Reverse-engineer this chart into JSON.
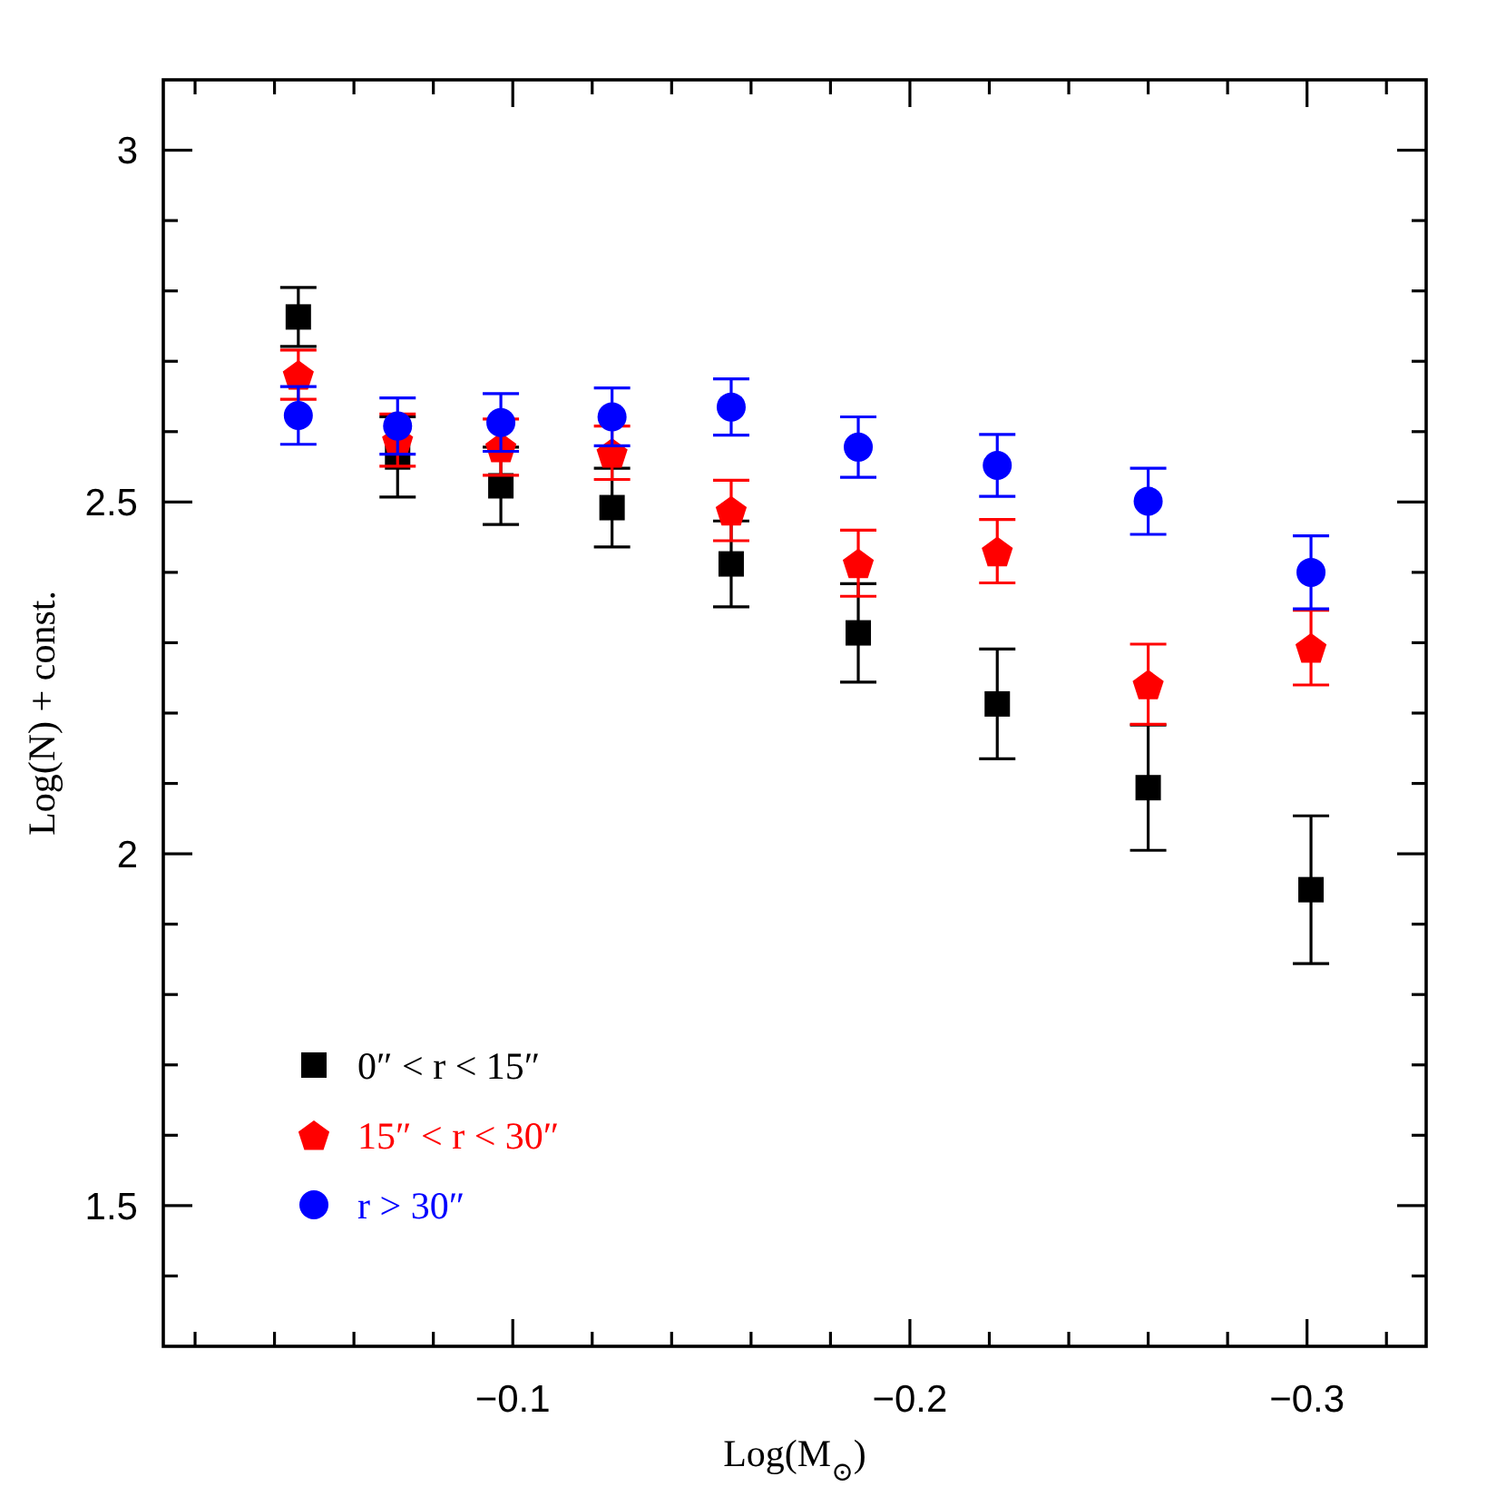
{
  "chart_data": {
    "type": "scatter",
    "xlabel": "Log(M$_{⊙}$)",
    "ylabel": "Log(N) + const.",
    "x": [
      -0.046,
      -0.071,
      -0.097,
      -0.125,
      -0.155,
      -0.187,
      -0.222,
      -0.26,
      -0.301
    ],
    "series": [
      {
        "name": "0″ < r < 15″",
        "color": "#000000",
        "marker": "square",
        "values": [
          2.763,
          2.564,
          2.523,
          2.492,
          2.412,
          2.314,
          2.213,
          2.094,
          1.949
        ],
        "errors": [
          0.042,
          0.057,
          0.055,
          0.056,
          0.061,
          0.07,
          0.078,
          0.089,
          0.105
        ]
      },
      {
        "name": "15″ < r < 30″",
        "color": "#ff0000",
        "values": [
          2.681,
          2.588,
          2.578,
          2.57,
          2.488,
          2.413,
          2.43,
          2.241,
          2.293
        ],
        "errors": [
          0.035,
          0.037,
          0.04,
          0.038,
          0.043,
          0.047,
          0.045,
          0.057,
          0.053
        ]
      },
      {
        "name": "r > 30″",
        "color": "#0000ff",
        "marker": "circle",
        "values": [
          2.623,
          2.608,
          2.613,
          2.621,
          2.635,
          2.578,
          2.552,
          2.501,
          2.4
        ],
        "errors": [
          0.041,
          0.04,
          0.041,
          0.041,
          0.04,
          0.043,
          0.044,
          0.047,
          0.052
        ]
      }
    ],
    "xlim": [
      -0.012,
      -0.33
    ],
    "xticks": [
      {
        "value": -0.02,
        "label": null
      },
      {
        "value": -0.04,
        "label": null
      },
      {
        "value": -0.06,
        "label": null
      },
      {
        "value": -0.08,
        "label": null
      },
      -0.1,
      {
        "value": -0.12,
        "label": null
      },
      {
        "value": -0.14,
        "label": null
      },
      {
        "value": -0.16,
        "label": null
      },
      {
        "value": -0.18,
        "label": null
      },
      -0.2,
      {
        "value": -0.22,
        "label": null
      },
      {
        "value": -0.24,
        "label": null
      },
      {
        "value": -0.26,
        "label": null
      },
      {
        "value": -0.28,
        "label": null
      },
      -0.3,
      {
        "value": -0.32,
        "label": null
      }
    ],
    "ylim": [
      1.3,
      3.1
    ],
    "yticks": [
      {
        "value": 1.4,
        "label": null
      },
      1.5,
      {
        "value": 1.6,
        "label": null
      },
      {
        "value": 1.7,
        "label": null
      },
      {
        "value": 1.8,
        "label": null
      },
      {
        "value": 1.9,
        "label": null
      },
      2,
      {
        "value": 2.1,
        "label": null
      },
      {
        "value": 2.2,
        "label": null
      },
      {
        "value": 2.3,
        "label": null
      },
      {
        "value": 2.4,
        "label": null
      },
      2.5,
      {
        "value": 2.6,
        "label": null
      },
      {
        "value": 2.7,
        "label": null
      },
      {
        "value": 2.8,
        "label": null
      },
      {
        "value": 2.9,
        "label": null
      },
      3
    ],
    "legend": "bottom left"
  }
}
